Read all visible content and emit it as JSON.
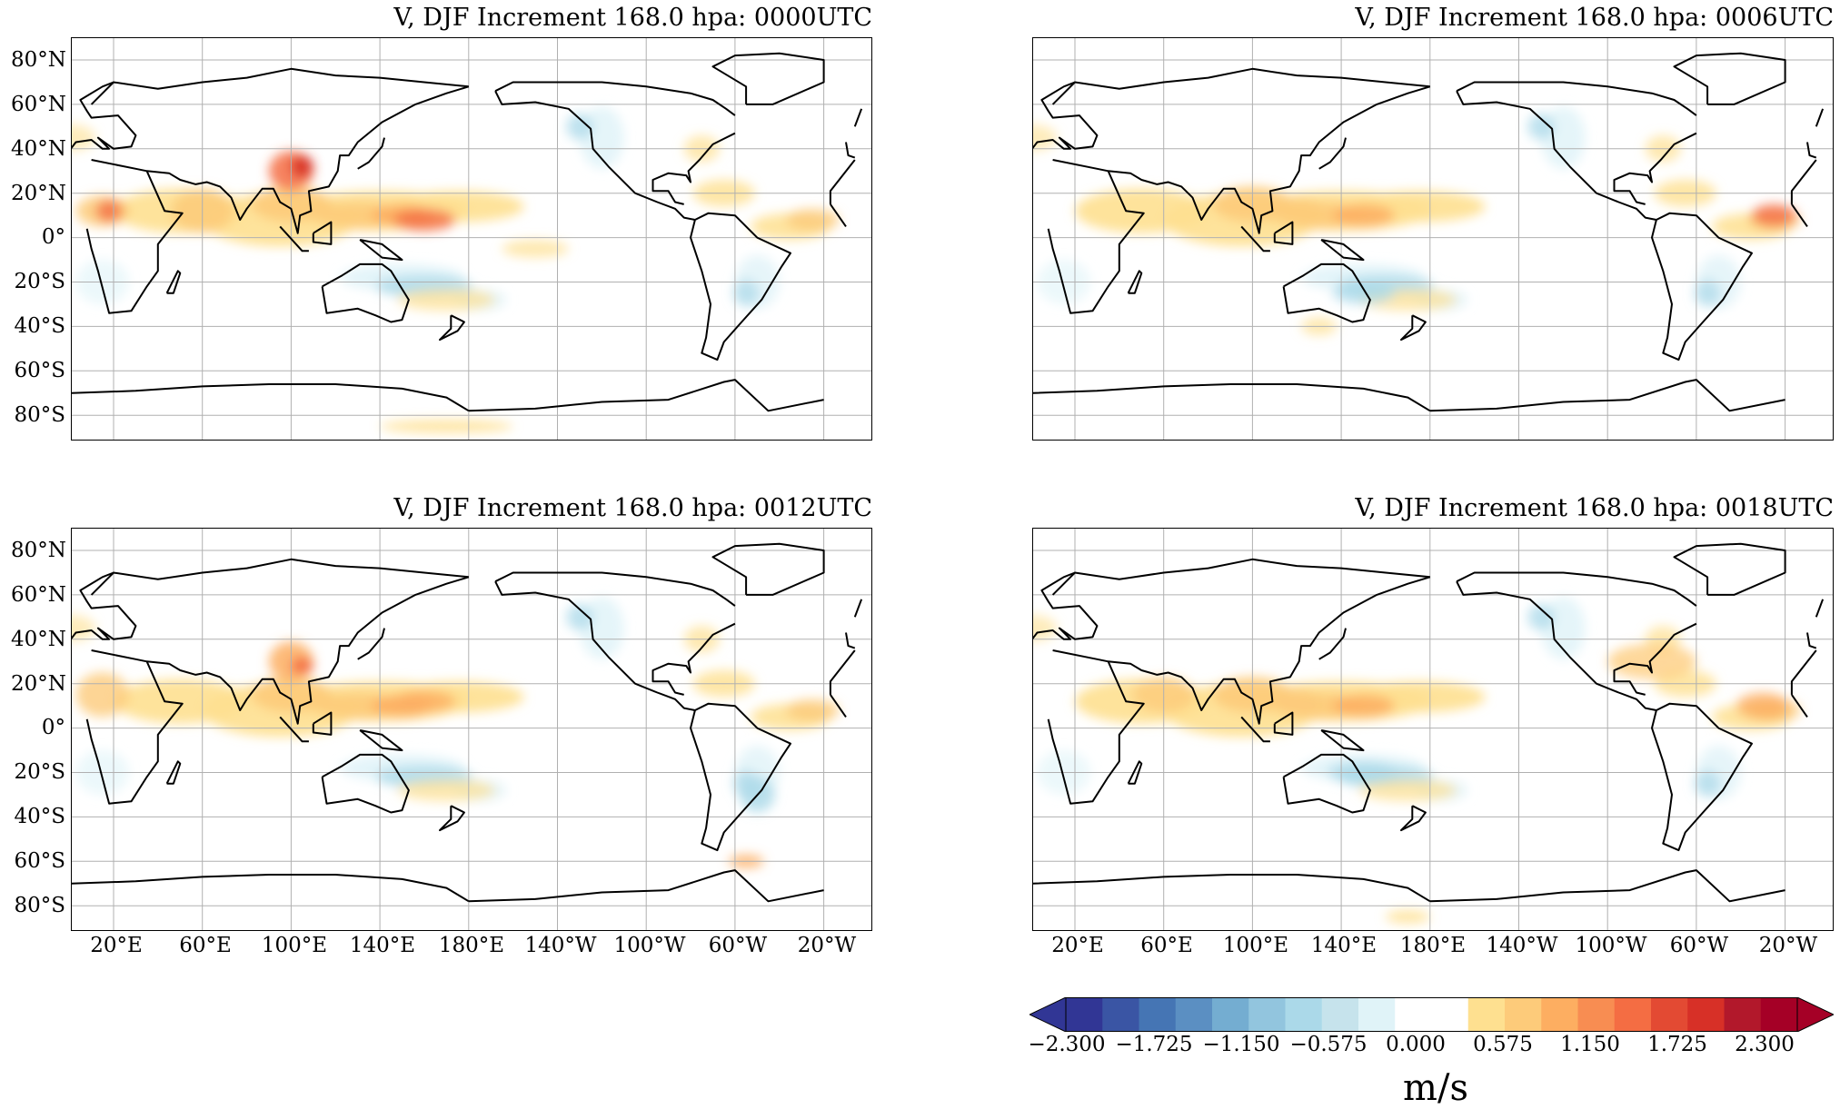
{
  "panels": [
    {
      "title": "V, DJF Increment 168.0 hpa: 0000UTC",
      "variant": 0
    },
    {
      "title": "V, DJF Increment 168.0 hpa: 0006UTC",
      "variant": 1
    },
    {
      "title": "V, DJF Increment 168.0 hpa: 0012UTC",
      "variant": 2
    },
    {
      "title": "V, DJF Increment 168.0 hpa: 0018UTC",
      "variant": 3
    }
  ],
  "lat_labels": [
    "80°N",
    "60°N",
    "40°N",
    "20°N",
    "0°",
    "20°S",
    "40°S",
    "60°S",
    "80°S"
  ],
  "lon_labels": [
    "20°E",
    "60°E",
    "100°E",
    "140°E",
    "180°E",
    "140°W",
    "100°W",
    "60°W",
    "20°W"
  ],
  "colorbar": {
    "ticks": [
      "−2.300",
      "−1.725",
      "−1.150",
      "−0.575",
      "0.000",
      "0.575",
      "1.150",
      "1.725",
      "2.300"
    ],
    "unit": "m/s",
    "colors": [
      "#313695",
      "#3a55a4",
      "#4575b4",
      "#5b8fc2",
      "#74add1",
      "#92c5de",
      "#abd9e9",
      "#c6e3ec",
      "#e0f3f8",
      "#ffffff",
      "#ffffff",
      "#fee090",
      "#fdcb7a",
      "#fdae61",
      "#f88d52",
      "#f46d43",
      "#e34a33",
      "#d73027",
      "#b2182b",
      "#a50026"
    ],
    "min_color": "#313695",
    "max_color": "#a50026"
  }
}
